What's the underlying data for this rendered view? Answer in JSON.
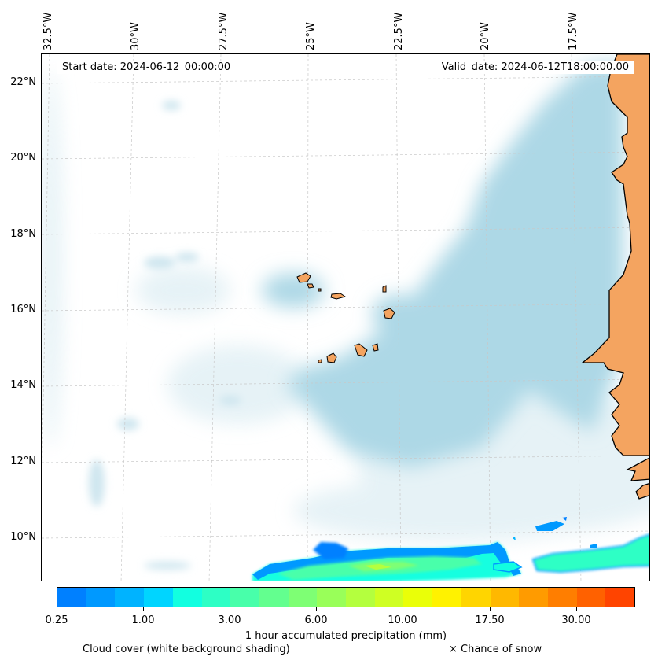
{
  "header": {
    "start_date": "Start date: 2024-06-12_00:00:00",
    "valid_date": "Valid_date: 2024-06-12T18:00:00.00"
  },
  "axes": {
    "lon_labels": [
      "32.5°W",
      "30°W",
      "27.5°W",
      "25°W",
      "22.5°W",
      "20°W",
      "17.5°W"
    ],
    "lat_labels": [
      "22°N",
      "20°N",
      "18°N",
      "16°N",
      "14°N",
      "12°N",
      "10°N"
    ]
  },
  "map": {
    "extent_lon": [
      -32.5,
      -15.5
    ],
    "extent_lat": [
      8.8,
      22.8
    ],
    "land_color": "#f4a460",
    "cloud_color": "#add8e6",
    "coast_color": "#000000",
    "gridline_color": "#b0b0b0",
    "features": [
      "Cabo Verde islands",
      "West African coast (Mauritania, Senegal, Gambia, Guinea-Bissau)",
      "ITCZ precipitation band near 9-10°N"
    ]
  },
  "colorbar": {
    "label": "1 hour accumulated precipitation (mm)",
    "colors": [
      "#0080ff",
      "#0099ff",
      "#00b3ff",
      "#00d5ff",
      "#12ffe0",
      "#2dffc5",
      "#48ffaa",
      "#63ff8f",
      "#7eff74",
      "#99ff59",
      "#b4ff3e",
      "#cfff23",
      "#eaff08",
      "#fff200",
      "#ffd500",
      "#ffb800",
      "#ff9b00",
      "#ff7e00",
      "#ff6100",
      "#ff4400"
    ],
    "tick_labels": [
      "0.25",
      "1.00",
      "3.00",
      "6.00",
      "10.00",
      "17.50",
      "30.00"
    ]
  },
  "legend": {
    "cloud": "Cloud cover (white background shading)",
    "snow": "× Chance of snow"
  }
}
